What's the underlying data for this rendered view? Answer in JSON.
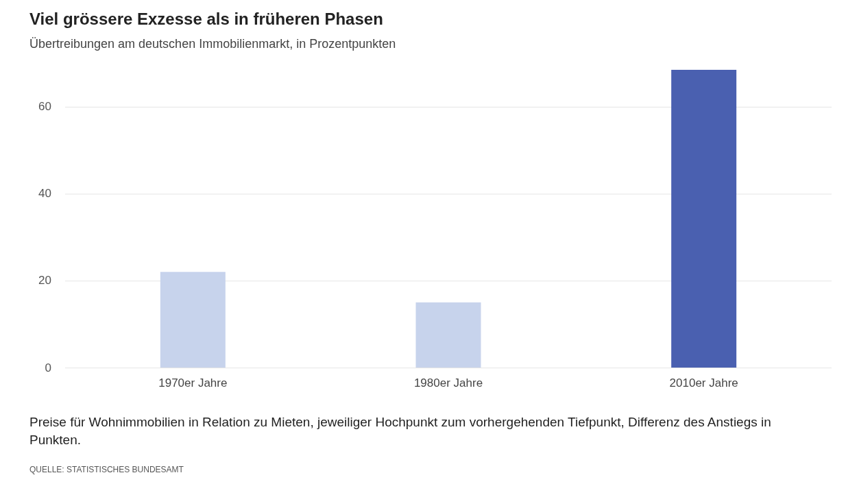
{
  "chart_data": {
    "type": "bar",
    "title": "Viel grössere Exzesse als in früheren Phasen",
    "subtitle": "Übertreibungen am deutschen Immobilienmarkt, in Prozentpunkten",
    "categories": [
      "1970er Jahre",
      "1980er Jahre",
      "2010er Jahre"
    ],
    "values": [
      22,
      15,
      68.5
    ],
    "colors": [
      "#c7d3ec",
      "#c7d3ec",
      "#4a60b0"
    ],
    "ylim": [
      0,
      68.5
    ],
    "yticks": [
      0,
      20,
      40,
      60
    ],
    "grid": "y",
    "annotations": [
      "Preise für Wohnimmobilien in Relation zu Mieten, jeweiliger Hochpunkt zum vorhergehenden Tiefpunkt, Differenz des Anstiegs in Punkten.",
      "QUELLE: STATISTISCHES BUNDESAMT"
    ]
  }
}
